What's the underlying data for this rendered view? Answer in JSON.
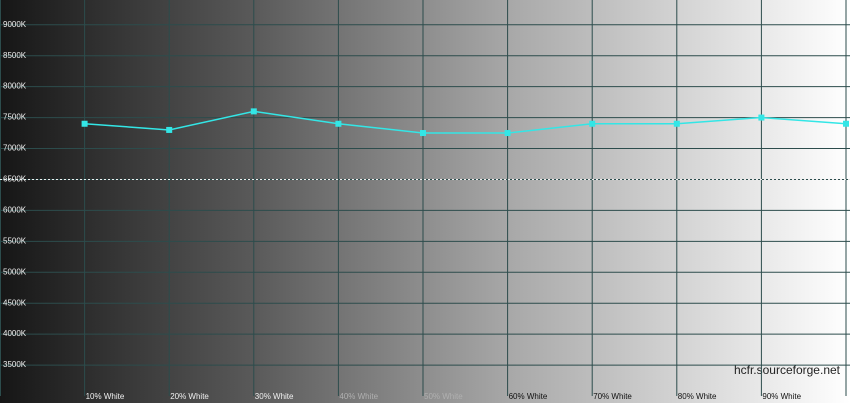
{
  "chart_data": {
    "type": "line",
    "categories": [
      "10% White",
      "20% White",
      "30% White",
      "40% White",
      "50% White",
      "60% White",
      "70% White",
      "80% White",
      "90% White",
      null
    ],
    "series": [
      {
        "color": "#33e6e6",
        "values": [
          7400,
          7300,
          7600,
          7400,
          7250,
          7250,
          7400,
          7400,
          7500,
          7400
        ]
      }
    ],
    "ylim": [
      3000,
      9400
    ],
    "yticks": [
      {
        "value": 3500,
        "label": "3500K"
      },
      {
        "value": 4000,
        "label": "4000K"
      },
      {
        "value": 4500,
        "label": "4500K"
      },
      {
        "value": 5000,
        "label": "5000K"
      },
      {
        "value": 5500,
        "label": "5500K"
      },
      {
        "value": 6000,
        "label": "6000K"
      },
      {
        "value": 6500,
        "label": "6500K"
      },
      {
        "value": 7000,
        "label": "7000K"
      },
      {
        "value": 7500,
        "label": "7500K"
      },
      {
        "value": 8000,
        "label": "8000K"
      },
      {
        "value": 8500,
        "label": "8500K"
      },
      {
        "value": 9000,
        "label": "9000K"
      }
    ],
    "reference": 6500,
    "grid": true,
    "watermark": "hcfr.sourceforge.net"
  }
}
